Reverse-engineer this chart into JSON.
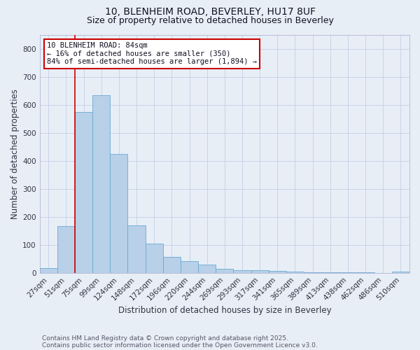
{
  "title_line1": "10, BLENHEIM ROAD, BEVERLEY, HU17 8UF",
  "title_line2": "Size of property relative to detached houses in Beverley",
  "xlabel": "Distribution of detached houses by size in Beverley",
  "ylabel": "Number of detached properties",
  "categories": [
    "27sqm",
    "51sqm",
    "75sqm",
    "99sqm",
    "124sqm",
    "148sqm",
    "172sqm",
    "196sqm",
    "220sqm",
    "244sqm",
    "269sqm",
    "293sqm",
    "317sqm",
    "341sqm",
    "365sqm",
    "389sqm",
    "413sqm",
    "438sqm",
    "462sqm",
    "486sqm",
    "510sqm"
  ],
  "values": [
    18,
    168,
    575,
    635,
    425,
    170,
    105,
    57,
    42,
    30,
    15,
    10,
    10,
    7,
    5,
    3,
    2,
    1,
    1,
    0,
    5
  ],
  "bar_color": "#b8d0e8",
  "bar_edge_color": "#6aaad4",
  "grid_color": "#c8d4e8",
  "bg_color": "#e8eef6",
  "vline_x_index": 2,
  "vline_color": "#cc0000",
  "annotation_line1": "10 BLENHEIM ROAD: 84sqm",
  "annotation_line2": "← 16% of detached houses are smaller (350)",
  "annotation_line3": "84% of semi-detached houses are larger (1,894) →",
  "annotation_box_color": "#cc0000",
  "ylim": [
    0,
    850
  ],
  "yticks": [
    0,
    100,
    200,
    300,
    400,
    500,
    600,
    700,
    800
  ],
  "footnote_line1": "Contains HM Land Registry data © Crown copyright and database right 2025.",
  "footnote_line2": "Contains public sector information licensed under the Open Government Licence v3.0.",
  "title_fontsize": 10,
  "subtitle_fontsize": 9,
  "axis_label_fontsize": 8.5,
  "tick_fontsize": 7.5,
  "annotation_fontsize": 7.5,
  "footnote_fontsize": 6.5
}
